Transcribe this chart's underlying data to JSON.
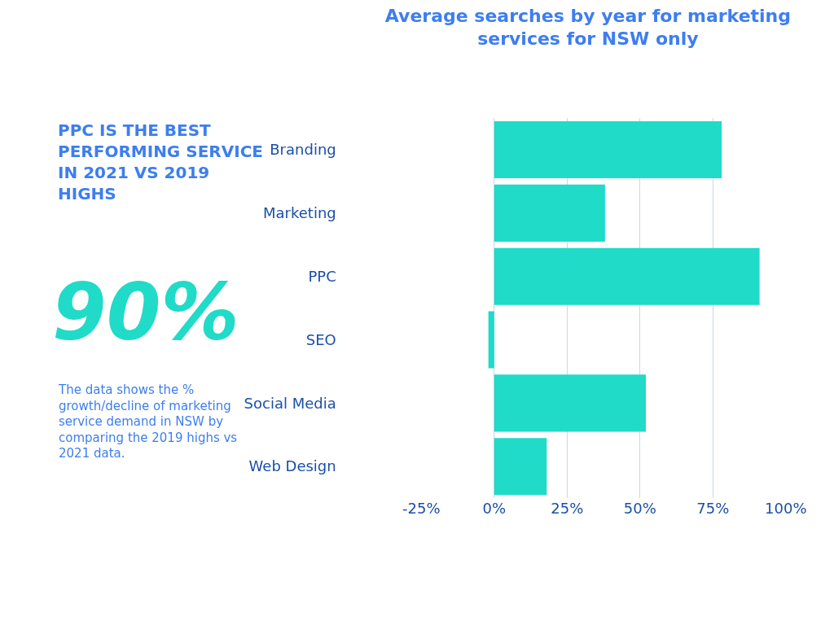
{
  "chart_data": {
    "type": "bar",
    "orientation": "horizontal",
    "title": "Average searches by year for marketing services for NSW only",
    "categories": [
      "Branding",
      "Marketing",
      "PPC",
      "SEO",
      "Social Media",
      "Web Design"
    ],
    "series": [
      {
        "color": "#1fdbc8",
        "values": [
          78,
          38,
          91,
          -2,
          52,
          18
        ]
      }
    ],
    "xlim": [
      -25,
      100
    ],
    "xticks": [
      {
        "value": -25,
        "label": "-25%"
      },
      {
        "value": 0,
        "label": "0%"
      },
      {
        "value": 25,
        "label": "25%"
      },
      {
        "value": 50,
        "label": "50%"
      },
      {
        "value": 75,
        "label": "75%"
      },
      {
        "value": 100,
        "label": "100%"
      }
    ],
    "grid": "x",
    "annotations": [
      "PPC IS THE BEST PERFORMING SERVICE IN 2021 VS 2019 HIGHS",
      "90%",
      "The data shows the % growth/decline of marketing service demand in NSW by comparing the 2019 highs vs 2021 data."
    ]
  }
}
